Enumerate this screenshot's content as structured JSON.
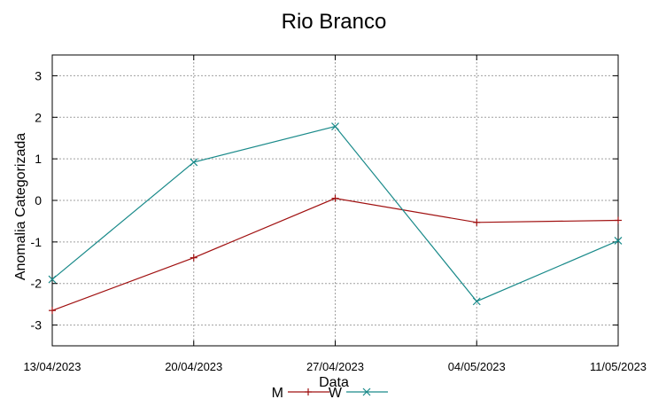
{
  "chart_data": {
    "type": "line",
    "title": "Rio Branco",
    "xlabel": "Data",
    "ylabel": "Anomalia Categorizada",
    "categories": [
      "13/04/2023",
      "20/04/2023",
      "27/04/2023",
      "04/05/2023",
      "11/05/2023"
    ],
    "ylim": [
      -3.5,
      3.5
    ],
    "yticks": [
      -3,
      -2,
      -1,
      0,
      1,
      2,
      3
    ],
    "grid": true,
    "legend_position": "bottom-center",
    "series": [
      {
        "name": "M",
        "color": "#a01010",
        "marker": "plus",
        "values": [
          -2.65,
          -1.38,
          0.05,
          -0.53,
          -0.48
        ]
      },
      {
        "name": "W",
        "color": "#1a8a8a",
        "marker": "cross",
        "values": [
          -1.9,
          0.92,
          1.78,
          -2.43,
          -0.97
        ]
      }
    ]
  }
}
